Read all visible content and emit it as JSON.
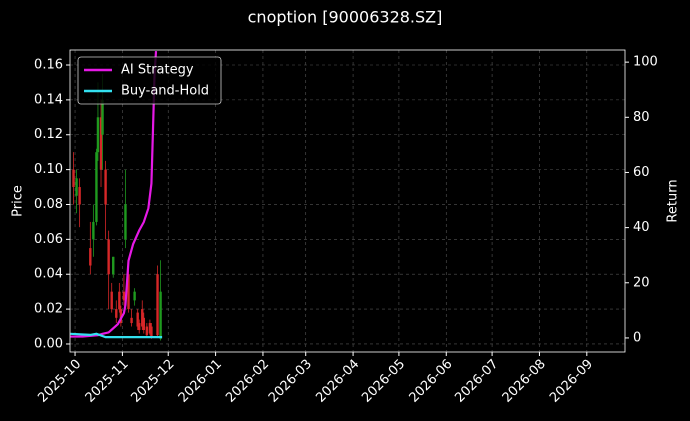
{
  "chart_data": {
    "type": "candlestick",
    "title": "cnoption [90006328.SZ]",
    "ylabel": "Price",
    "y2label": "Return",
    "xlim": [
      -3.3,
      360
    ],
    "xticks": [
      {
        "value": 0,
        "label": "2025-10"
      },
      {
        "value": 31,
        "label": "2025-11"
      },
      {
        "value": 61,
        "label": "2025-12"
      },
      {
        "value": 92,
        "label": "2026-01"
      },
      {
        "value": 123,
        "label": "2026-02"
      },
      {
        "value": 151,
        "label": "2026-03"
      },
      {
        "value": 182,
        "label": "2026-04"
      },
      {
        "value": 212,
        "label": "2026-05"
      },
      {
        "value": 243,
        "label": "2026-06"
      },
      {
        "value": 273,
        "label": "2026-07"
      },
      {
        "value": 304,
        "label": "2026-08"
      },
      {
        "value": 335,
        "label": "2026-09"
      }
    ],
    "ylim": [
      -0.0046,
      0.1686
    ],
    "yticks": [
      {
        "value": 0,
        "label": "0.00"
      },
      {
        "value": 0.02,
        "label": "0.02"
      },
      {
        "value": 0.04,
        "label": "0.04"
      },
      {
        "value": 0.06,
        "label": "0.06"
      },
      {
        "value": 0.08,
        "label": "0.08"
      },
      {
        "value": 0.1,
        "label": "0.10"
      },
      {
        "value": 0.12,
        "label": "0.12"
      },
      {
        "value": 0.14,
        "label": "0.14"
      },
      {
        "value": 0.16,
        "label": "0.16"
      }
    ],
    "y2lim": [
      -5.1,
      104.4
    ],
    "y2ticks": [
      0,
      20,
      40,
      60,
      80,
      100
    ],
    "grid": true,
    "legend": "upper left",
    "up_color": "#1f9a1f",
    "down_color": "#d62728",
    "candles": {
      "x": [
        -1,
        1,
        3,
        10,
        12,
        14,
        15,
        17,
        18,
        20,
        22,
        24,
        25,
        27,
        29,
        30,
        32,
        33,
        35,
        37,
        39,
        41,
        42,
        44,
        45,
        47,
        49,
        50,
        54,
        56
      ],
      "open": [
        0.1,
        0.085,
        0.09,
        0.055,
        0.06,
        0.07,
        0.11,
        0.13,
        0.12,
        0.1,
        0.06,
        0.03,
        0.04,
        0.02,
        0.03,
        0.02,
        0.03,
        0.06,
        0.04,
        0.015,
        0.025,
        0.018,
        0.012,
        0.02,
        0.015,
        0.01,
        0.012,
        0.01,
        0.04,
        0.003
      ],
      "high": [
        0.11,
        0.1,
        0.095,
        0.07,
        0.08,
        0.112,
        0.15,
        0.14,
        0.155,
        0.105,
        0.065,
        0.035,
        0.05,
        0.025,
        0.035,
        0.022,
        0.04,
        0.1,
        0.045,
        0.02,
        0.032,
        0.02,
        0.014,
        0.025,
        0.018,
        0.012,
        0.014,
        0.012,
        0.045,
        0.048
      ],
      "low": [
        0.08,
        0.075,
        0.067,
        0.04,
        0.05,
        0.068,
        0.105,
        0.09,
        0.1,
        0.06,
        0.02,
        0.018,
        0.038,
        0.012,
        0.018,
        0.01,
        0.022,
        0.055,
        0.018,
        0.01,
        0.022,
        0.008,
        0.006,
        0.008,
        0.006,
        0.004,
        0.005,
        0.003,
        0.004,
        0.002
      ],
      "close": [
        0.09,
        0.095,
        0.08,
        0.045,
        0.07,
        0.11,
        0.13,
        0.1,
        0.14,
        0.08,
        0.04,
        0.02,
        0.05,
        0.015,
        0.02,
        0.012,
        0.025,
        0.08,
        0.02,
        0.012,
        0.03,
        0.01,
        0.008,
        0.01,
        0.008,
        0.005,
        0.006,
        0.004,
        0.005,
        0.03
      ]
    },
    "series": [
      {
        "name": "AI Strategy",
        "color": "#e619e6",
        "axis": "y2",
        "x": [
          -3,
          5,
          15,
          18,
          22,
          24,
          28,
          30,
          32,
          33,
          35,
          38,
          42,
          45,
          48,
          50,
          51,
          52,
          53
        ],
        "values": [
          0.5,
          0.5,
          1,
          1.5,
          2,
          3,
          5,
          7,
          9,
          12,
          28,
          34,
          39,
          42,
          47,
          56,
          75,
          95,
          104
        ]
      },
      {
        "name": "Buy-and-Hold",
        "color": "#33e0f0",
        "axis": "y2",
        "x": [
          -3,
          10,
          14,
          20,
          57
        ],
        "values": [
          1.5,
          1.1,
          1.5,
          0.3,
          0.3
        ]
      }
    ]
  }
}
